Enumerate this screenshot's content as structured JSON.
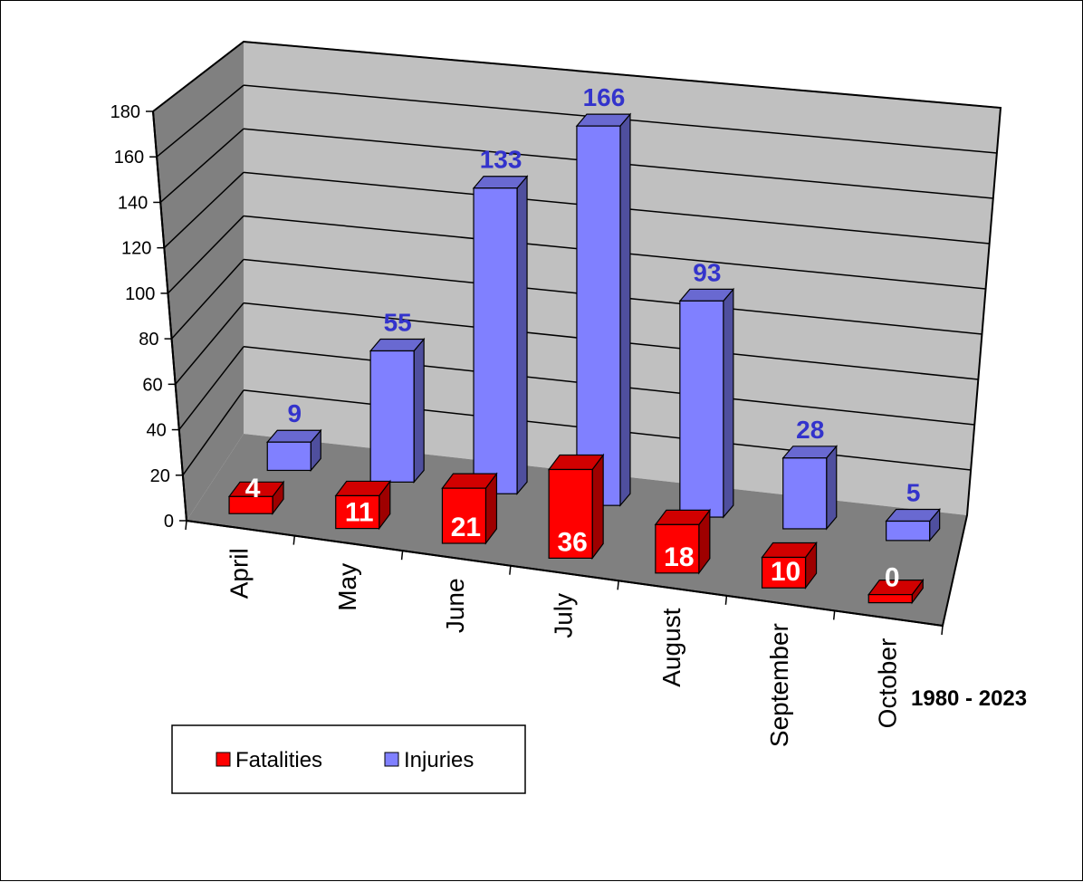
{
  "chart_data": {
    "type": "bar",
    "style": "3d-clustered-columns",
    "categories": [
      "April",
      "May",
      "June",
      "July",
      "August",
      "September",
      "October"
    ],
    "series": [
      {
        "name": "Fatalities",
        "values": [
          4,
          11,
          21,
          36,
          18,
          10,
          0
        ],
        "color": "#ff0000"
      },
      {
        "name": "Injuries",
        "values": [
          9,
          55,
          133,
          166,
          93,
          28,
          5
        ],
        "color": "#8080ff"
      }
    ],
    "y_ticks": [
      "0",
      "20",
      "40",
      "60",
      "80",
      "100",
      "120",
      "140",
      "160",
      "180"
    ],
    "ylim": [
      0,
      180
    ],
    "grid": true,
    "legend_placement": "bottom-left",
    "note": "1980 - 2023",
    "colors": {
      "back_wall": "#c0c0c0",
      "side_wall": "#808080",
      "floor": "#808080",
      "injuries_label": "#3333cc",
      "fatalities_label": "#ffffff"
    }
  }
}
